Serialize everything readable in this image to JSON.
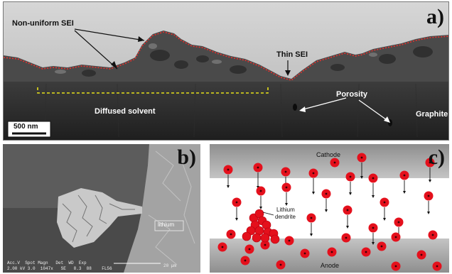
{
  "panel_a": {
    "label": "a)",
    "annotations": {
      "non_uniform_sei": "Non-uniform SEI",
      "thin_sei": "Thin SEI",
      "porosity": "Porosity",
      "diffused_solvent": "Diffused solvent",
      "graphite": "Graphite"
    },
    "scale_bar": "500 nm",
    "colors": {
      "sei_outline": "#e8322e",
      "solvent_line": "#e6e01a"
    }
  },
  "panel_b": {
    "label": "b)",
    "lithium_label": "lithium",
    "sem_info": {
      "row1": "Acc.V  Spot Magn   Det  WD  Exp",
      "row2": "2.00 kV 3.0  1047x   SE   8.3  88    FL56",
      "scale": "20 μm"
    }
  },
  "panel_c": {
    "label": "c)",
    "cathode_label": "Cathode",
    "anode_label": "Anode",
    "dendrite_label_line1": "Lithium",
    "dendrite_label_line2": "dendrite",
    "colors": {
      "ion": "#e4101c",
      "electrode": "#9b9b9b"
    }
  }
}
